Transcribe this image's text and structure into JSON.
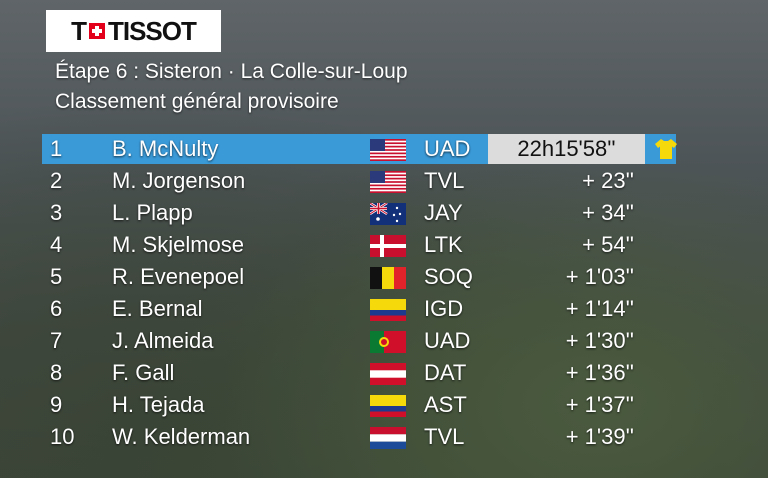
{
  "brand": {
    "logo_text": "TISSOT",
    "logo_prefix": "T"
  },
  "header": {
    "stage": "Étape 6 : Sisteron · La Colle-sur-Loup",
    "subtitle": "Classement général provisoire"
  },
  "colors": {
    "leader_row": "#3a9ad8",
    "leader_time_box": "#dcdcdc",
    "yellow_jersey": "#f5d90a"
  },
  "standings": [
    {
      "pos": "1",
      "name": "B. McNulty",
      "flag": "usa",
      "team": "UAD",
      "time": "22h15'58''"
    },
    {
      "pos": "2",
      "name": "M. Jorgenson",
      "flag": "usa",
      "team": "TVL",
      "time": "+ 23''"
    },
    {
      "pos": "3",
      "name": "L. Plapp",
      "flag": "australia",
      "team": "JAY",
      "time": "+ 34''"
    },
    {
      "pos": "4",
      "name": "M. Skjelmose",
      "flag": "denmark",
      "team": "LTK",
      "time": "+ 54''"
    },
    {
      "pos": "5",
      "name": "R. Evenepoel",
      "flag": "belgium",
      "team": "SOQ",
      "time": "+ 1'03''"
    },
    {
      "pos": "6",
      "name": "E. Bernal",
      "flag": "colombia",
      "team": "IGD",
      "time": "+ 1'14''"
    },
    {
      "pos": "7",
      "name": "J. Almeida",
      "flag": "portugal",
      "team": "UAD",
      "time": "+ 1'30''"
    },
    {
      "pos": "8",
      "name": "F. Gall",
      "flag": "austria",
      "team": "DAT",
      "time": "+ 1'36''"
    },
    {
      "pos": "9",
      "name": "H. Tejada",
      "flag": "colombia",
      "team": "AST",
      "time": "+ 1'37''"
    },
    {
      "pos": "10",
      "name": "W. Kelderman",
      "flag": "netherlands",
      "team": "TVL",
      "time": "+ 1'39''"
    }
  ],
  "leader_icon": "yellow-jersey-icon"
}
